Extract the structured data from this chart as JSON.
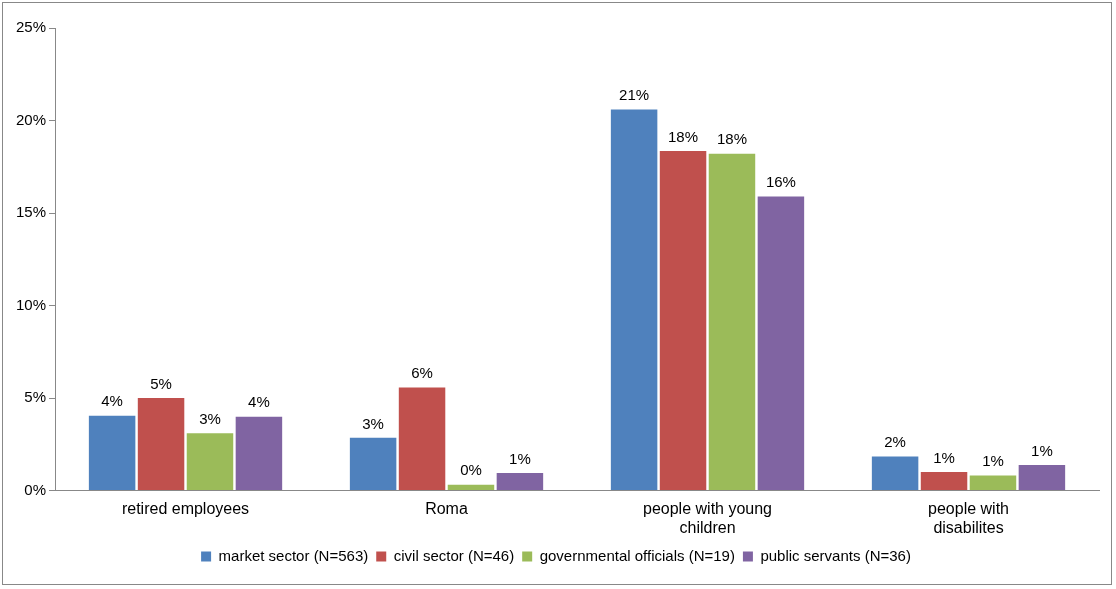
{
  "chart_data": {
    "type": "bar",
    "categories": [
      "retired employees",
      "Roma",
      "people with young children",
      "people with disabilites"
    ],
    "series": [
      {
        "name": "market sector (N=563)",
        "color": "#4f81bd",
        "values": [
          4.05,
          2.85,
          20.6,
          1.84
        ],
        "value_labels": [
          "4%",
          "3%",
          "21%",
          "2%"
        ]
      },
      {
        "name": "civil sector (N=46)",
        "color": "#c0504d",
        "values": [
          5.0,
          5.57,
          18.35,
          1.0
        ],
        "value_labels": [
          "5%",
          "6%",
          "18%",
          "1%"
        ]
      },
      {
        "name": "governmental officials (N=19)",
        "color": "#9bbb59",
        "values": [
          3.1,
          0.32,
          18.2,
          0.82
        ],
        "value_labels": [
          "3%",
          "0%",
          "18%",
          "1%"
        ]
      },
      {
        "name": "public servants (N=36)",
        "color": "#8064a2",
        "values": [
          3.99,
          0.95,
          15.9,
          1.39
        ],
        "value_labels": [
          "4%",
          "1%",
          "16%",
          "1%"
        ]
      }
    ],
    "ylim": [
      0,
      25
    ],
    "yticks": [
      {
        "value": 0,
        "label": "0%"
      },
      {
        "value": 5,
        "label": "5%"
      },
      {
        "value": 10,
        "label": "10%"
      },
      {
        "value": 15,
        "label": "15%"
      },
      {
        "value": 20,
        "label": "20%"
      },
      {
        "value": 25,
        "label": "25%"
      }
    ],
    "grid": false,
    "legend": "bottom"
  }
}
